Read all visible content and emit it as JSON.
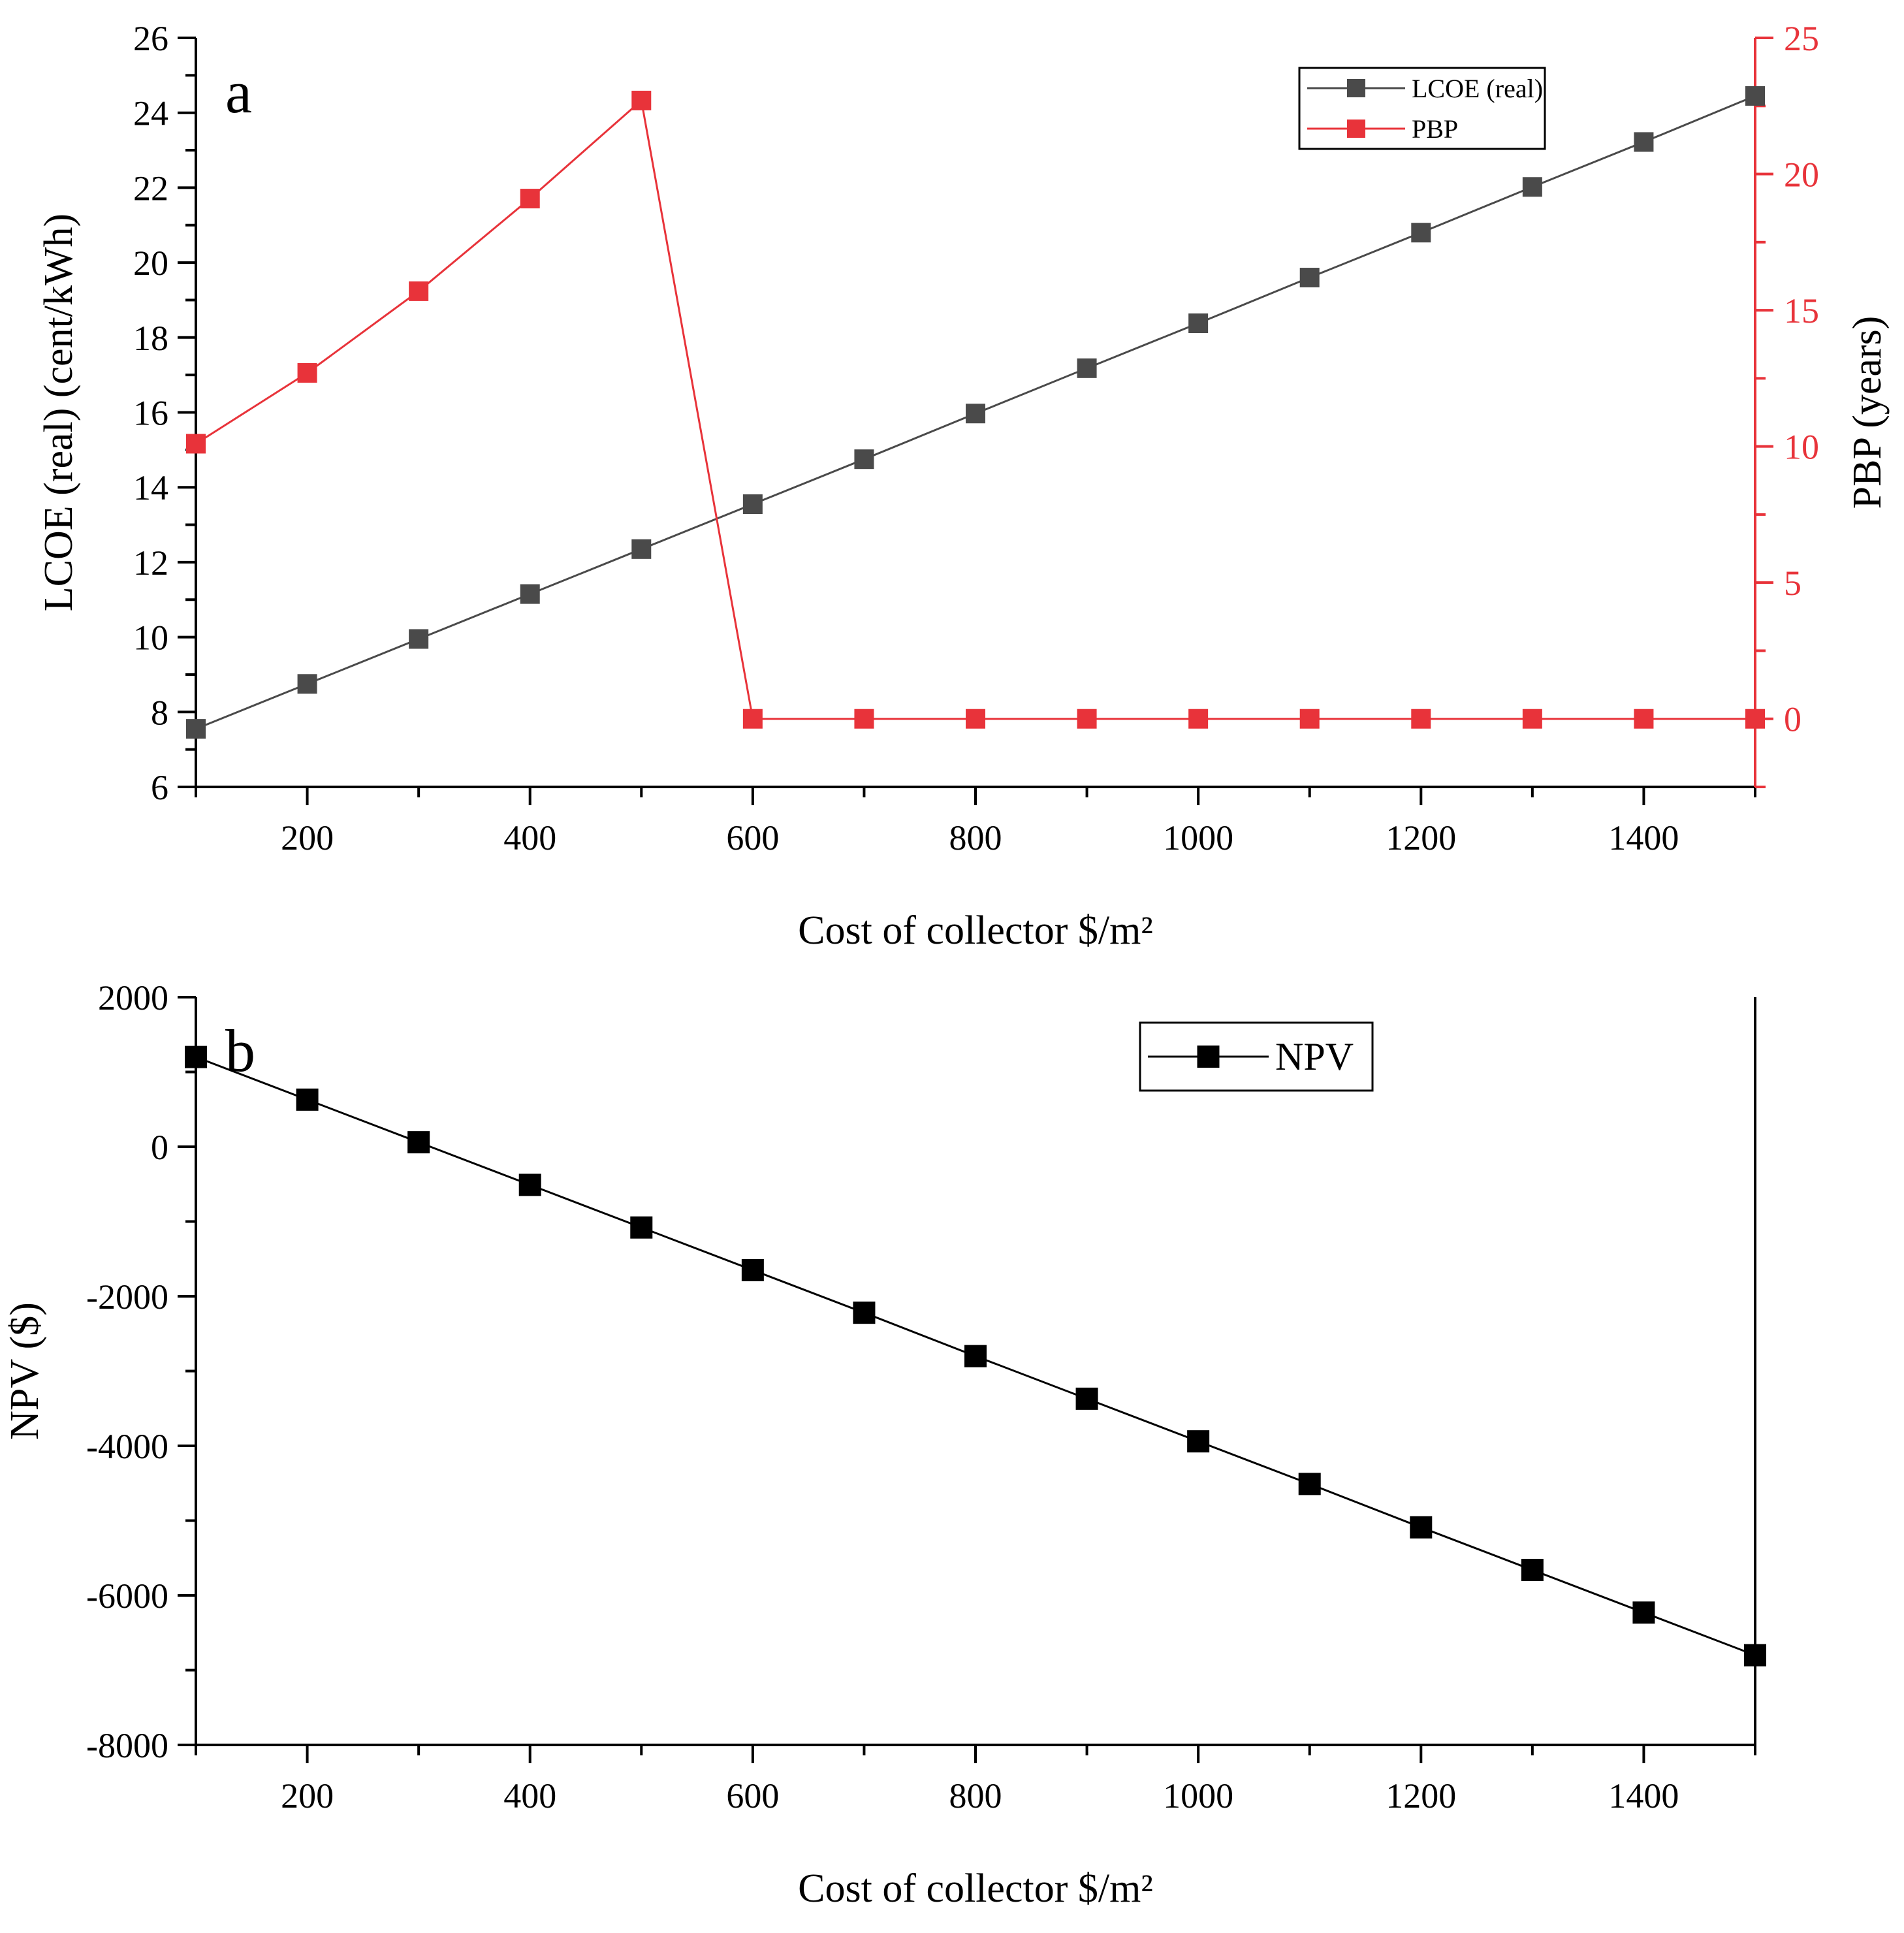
{
  "chart_data": [
    {
      "panel": "a",
      "type": "line",
      "xlabel": "Cost of collector $/m²",
      "ylabel": "LCOE (real) (cent/kWh)",
      "y2label": "PBP (years)",
      "x": [
        100,
        200,
        300,
        400,
        500,
        600,
        700,
        800,
        900,
        1000,
        1100,
        1200,
        1300,
        1400,
        1500
      ],
      "xlim": [
        100,
        1500
      ],
      "xticks": [
        200,
        400,
        600,
        800,
        1000,
        1200,
        1400
      ],
      "ylim": [
        6,
        26
      ],
      "yticks": [
        6,
        8,
        10,
        12,
        14,
        16,
        18,
        20,
        22,
        24,
        26
      ],
      "y2lim": [
        -2.5,
        25
      ],
      "y2ticks": [
        0,
        5,
        10,
        15,
        20,
        25
      ],
      "legend_position": "top-right",
      "series": [
        {
          "name": "LCOE (real)",
          "axis": "left",
          "color": "#4a4a4a",
          "marker": "square",
          "values": [
            7.55,
            8.75,
            9.95,
            11.15,
            12.35,
            13.55,
            14.75,
            15.97,
            17.18,
            18.38,
            19.6,
            20.8,
            22.02,
            23.22,
            24.45
          ]
        },
        {
          "name": "PBP",
          "axis": "right",
          "color": "#e8333a",
          "marker": "square",
          "values": [
            10.1,
            12.7,
            15.7,
            19.1,
            22.7,
            0,
            0,
            0,
            0,
            0,
            0,
            0,
            0,
            0,
            0
          ]
        }
      ]
    },
    {
      "panel": "b",
      "type": "line",
      "xlabel": "Cost of collector $/m²",
      "ylabel": "NPV ($)",
      "x": [
        100,
        200,
        300,
        400,
        500,
        600,
        700,
        800,
        900,
        1000,
        1100,
        1200,
        1300,
        1400,
        1500
      ],
      "xlim": [
        100,
        1500
      ],
      "xticks": [
        200,
        400,
        600,
        800,
        1000,
        1200,
        1400
      ],
      "ylim": [
        -8000,
        2000
      ],
      "yticks": [
        -8000,
        -6000,
        -4000,
        -2000,
        0,
        2000
      ],
      "legend_position": "top-right",
      "series": [
        {
          "name": "NPV",
          "axis": "left",
          "color": "#000000",
          "marker": "square",
          "values": [
            1200,
            630,
            60,
            -510,
            -1080,
            -1650,
            -2220,
            -2800,
            -3370,
            -3940,
            -4510,
            -5090,
            -5660,
            -6230,
            -6800
          ]
        }
      ]
    }
  ]
}
